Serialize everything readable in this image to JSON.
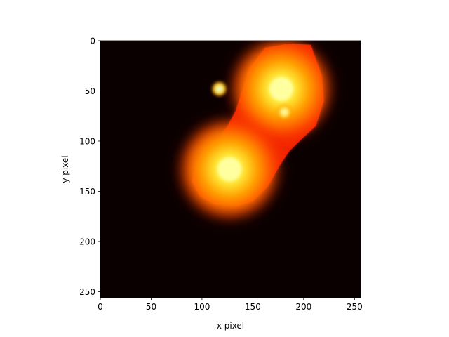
{
  "chart_data": {
    "type": "heatmap",
    "title": "",
    "xlabel": "x pixel",
    "ylabel": "y pixel",
    "xlim": [
      0,
      256
    ],
    "ylim": [
      256,
      0
    ],
    "y_inverted": true,
    "grid": false,
    "colormap": "hot",
    "background_color": "#0b0000",
    "x_ticks": [
      0,
      50,
      100,
      150,
      200,
      250
    ],
    "y_ticks": [
      0,
      50,
      100,
      150,
      200,
      250
    ],
    "x_tick_labels": [
      "0",
      "50",
      "100",
      "150",
      "200",
      "250"
    ],
    "y_tick_labels": [
      "0",
      "50",
      "100",
      "150",
      "200",
      "250"
    ],
    "threshold_region": [
      [
        162,
        7
      ],
      [
        185,
        3
      ],
      [
        207,
        4
      ],
      [
        212,
        18
      ],
      [
        218,
        35
      ],
      [
        220,
        60
      ],
      [
        212,
        85
      ],
      [
        198,
        98
      ],
      [
        186,
        110
      ],
      [
        176,
        125
      ],
      [
        165,
        145
      ],
      [
        150,
        160
      ],
      [
        135,
        165
      ],
      [
        112,
        163
      ],
      [
        98,
        155
      ],
      [
        90,
        140
      ],
      [
        95,
        120
      ],
      [
        115,
        100
      ],
      [
        125,
        85
      ],
      [
        133,
        70
      ],
      [
        140,
        48
      ],
      [
        146,
        28
      ]
    ],
    "blobs": [
      {
        "x": 178,
        "y": 48,
        "peak": 1.0,
        "sigma": 24
      },
      {
        "x": 127,
        "y": 128,
        "peak": 1.0,
        "sigma": 24
      },
      {
        "x": 117,
        "y": 48,
        "peak": 0.95,
        "sigma": 3
      },
      {
        "x": 181,
        "y": 71,
        "peak": 0.85,
        "sigma": 3
      }
    ]
  }
}
